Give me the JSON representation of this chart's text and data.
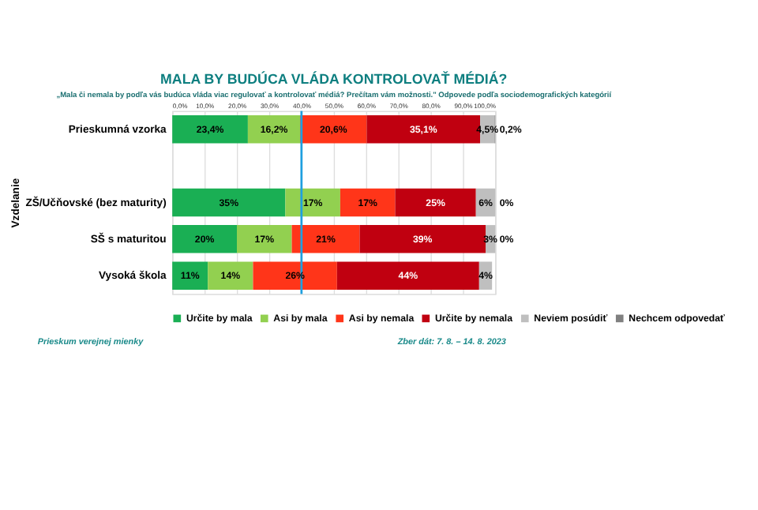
{
  "chart_data": {
    "type": "bar",
    "orientation": "horizontal",
    "stacked": true,
    "title": "MALA BY BUDÚCA VLÁDA KONTROLOVAŤ MÉDIÁ?",
    "subtitle": "„Mala či nemala by podľa vás budúca vláda viac regulovať a kontrolovať médiá? Prečítam vám možnosti.\" Odpovede podľa sociodemografických kategórií",
    "ylabel": "Vzdelanie",
    "categories": [
      "Prieskumná vzorka",
      null,
      "ZŠ/Učňovské (bez maturity)",
      "SŠ s maturitou",
      "Vysoká škola"
    ],
    "series": [
      {
        "name": "Určite by mala",
        "color": "#1aaf54",
        "values": [
          23.4,
          null,
          35,
          20,
          11
        ],
        "value_labels": [
          "23,4%",
          null,
          "35%",
          "20%",
          "11%"
        ]
      },
      {
        "name": "Asi by mala",
        "color": "#92d050",
        "values": [
          16.2,
          null,
          17,
          17,
          14
        ],
        "value_labels": [
          "16,2%",
          null,
          "17%",
          "17%",
          "14%"
        ]
      },
      {
        "name": "Asi by nemala",
        "color": "#ff3519",
        "values": [
          20.6,
          null,
          17,
          21,
          26
        ],
        "value_labels": [
          "20,6%",
          null,
          "17%",
          "21%",
          "26%"
        ]
      },
      {
        "name": "Určite by nemala",
        "color": "#c00010",
        "values": [
          35.1,
          null,
          25,
          39,
          44
        ],
        "value_labels": [
          "35,1%",
          null,
          "25%",
          "39%",
          "44%"
        ]
      },
      {
        "name": "Neviem posúdiť",
        "color": "#bfbfbf",
        "values": [
          4.5,
          null,
          6,
          3,
          4
        ],
        "value_labels": [
          "4,5%",
          null,
          "6%",
          "3%",
          "4%"
        ]
      },
      {
        "name": "Nechcem odpovedať",
        "color": "#808080",
        "values": [
          0.2,
          null,
          0,
          0,
          null
        ],
        "value_labels": [
          "0,2%",
          null,
          "0%",
          "0%",
          null
        ]
      }
    ],
    "xlim": [
      0,
      100
    ],
    "xticks": [
      {
        "value": 0,
        "label": "0,0%"
      },
      {
        "value": 10,
        "label": "10,0%"
      },
      {
        "value": 20,
        "label": "20,0%"
      },
      {
        "value": 30,
        "label": "30,0%"
      },
      {
        "value": 40,
        "label": "40,0%"
      },
      {
        "value": 50,
        "label": "50,0%"
      },
      {
        "value": 60,
        "label": "60,0%"
      },
      {
        "value": 70,
        "label": "70,0%"
      },
      {
        "value": 80,
        "label": "80,0%"
      },
      {
        "value": 90,
        "label": "90,0%"
      },
      {
        "value": 100,
        "label": "100,0%"
      }
    ],
    "ref_lines": [
      {
        "axis": "x",
        "value": 40,
        "color": "#1ea0e0"
      }
    ],
    "grid": "x",
    "legend": "bottom",
    "annotations": [
      "Prieskum verejnej mienky",
      "Zber dát: 7. 8. – 14. 8. 2023"
    ]
  }
}
